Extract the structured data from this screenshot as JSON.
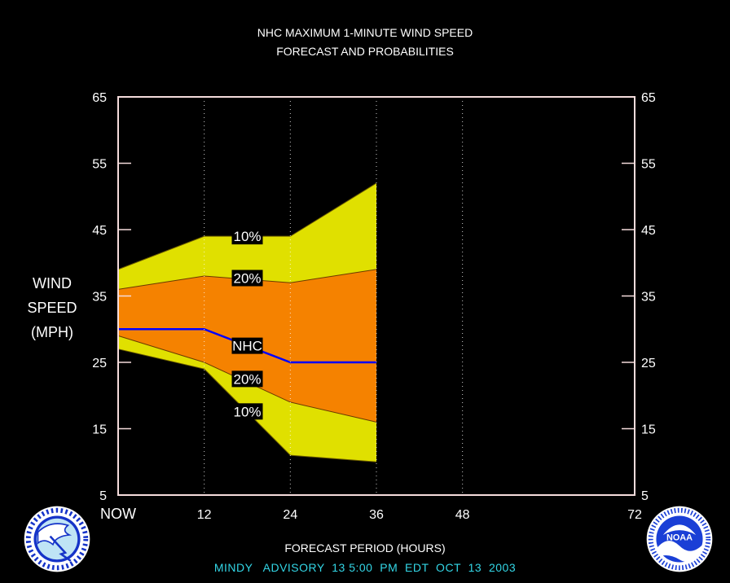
{
  "colors": {
    "background": "#000000",
    "band_10": "#e0e000",
    "band_20": "#f58200",
    "nhc_line": "#0000ff",
    "axes": "#f5dcdc",
    "advisory_text": "#33d6e6"
  },
  "title_line1": "NHC MAXIMUM 1-MINUTE WIND SPEED",
  "title_line2": "FORECAST AND PROBABILITIES",
  "advisory": "MINDY   ADVISORY  13 5:00  PM  EDT  OCT  13  2003",
  "logos": {
    "left": "nws-logo",
    "right": "noaa-logo"
  },
  "chart_data": {
    "type": "area",
    "xlabel": "FORECAST PERIOD (HOURS)",
    "ylabel": [
      "WIND",
      "SPEED",
      "(MPH)"
    ],
    "xlim": [
      0,
      72
    ],
    "ylim": [
      5,
      65
    ],
    "xticks": [
      0,
      12,
      24,
      36,
      48,
      72
    ],
    "xtick_labels": [
      "NOW",
      "12",
      "24",
      "36",
      "48",
      "72"
    ],
    "yticks": [
      5,
      15,
      25,
      35,
      45,
      55,
      65
    ],
    "grid": "vertical dotted lines at 12, 24, 36, 48",
    "x": [
      0,
      12,
      24,
      36
    ],
    "series": [
      {
        "name": "10%",
        "role": "upper",
        "values": [
          39,
          44,
          44,
          52
        ]
      },
      {
        "name": "20%",
        "role": "upper",
        "values": [
          36,
          38,
          37,
          39
        ]
      },
      {
        "name": "NHC",
        "role": "forecast",
        "values": [
          30,
          30,
          25,
          25
        ]
      },
      {
        "name": "20%",
        "role": "lower",
        "values": [
          29,
          25,
          19,
          16
        ]
      },
      {
        "name": "10%",
        "role": "lower",
        "values": [
          27,
          24,
          11,
          10
        ]
      }
    ],
    "annotations": [
      "10%",
      "20%",
      "NHC",
      "20%",
      "10%"
    ]
  }
}
